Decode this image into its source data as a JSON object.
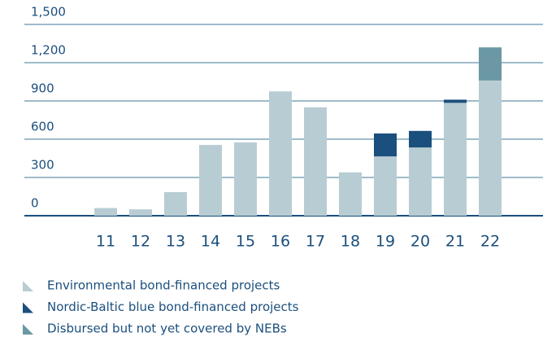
{
  "chart_data": {
    "type": "stacked_bar",
    "categories": [
      "11",
      "12",
      "13",
      "14",
      "15",
      "16",
      "17",
      "18",
      "19",
      "20",
      "21",
      "22"
    ],
    "series": [
      {
        "name": "Environmental bond-financed projects",
        "color": "#b8cdd3",
        "values": [
          60,
          50,
          185,
          555,
          575,
          975,
          850,
          340,
          465,
          535,
          885,
          1060
        ]
      },
      {
        "name": "Nordic-Baltic blue bond-financed projects",
        "color": "#1b4f7d",
        "values": [
          null,
          null,
          null,
          null,
          null,
          null,
          null,
          null,
          180,
          130,
          25,
          null
        ]
      },
      {
        "name": "Disbursed but not yet covered by NEBs",
        "color": "#6b98a2",
        "values": [
          null,
          null,
          null,
          null,
          null,
          null,
          null,
          null,
          null,
          null,
          null,
          260
        ]
      }
    ],
    "ylim": [
      0,
      1500
    ],
    "yticks": [
      0,
      300,
      600,
      900,
      {
        "value": 1200,
        "label": "1,200"
      },
      {
        "value": 1500,
        "label": "1,500"
      }
    ],
    "grid": true,
    "legend": "bottom"
  }
}
